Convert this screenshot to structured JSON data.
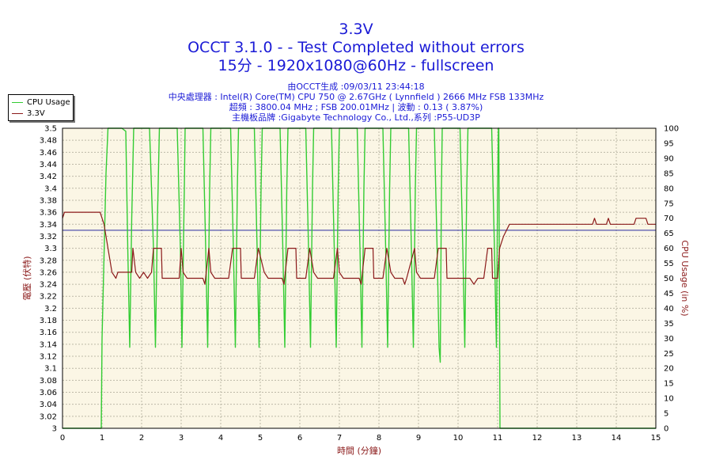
{
  "chart_data": {
    "type": "line",
    "title": "3.3V",
    "subtitle_lines": [
      "OCCT 3.1.0 -  - Test Completed without errors",
      "15分 - 1920x1080@60Hz - fullscreen"
    ],
    "info_lines": [
      "由OCCT生成 :09/03/11 23:44:18",
      "中央處理器 : Intel(R) Core(TM) CPU 750 @ 2.67GHz ( Lynnfield ) 2666 MHz FSB 133MHz",
      "超頻 : 3800.04 MHz ; FSB 200.01MHz | 波動 : 0.13 ( 3.87%)",
      "主機板品牌 :Gigabyte Technology Co., Ltd.,系列 :P55-UD3P"
    ],
    "xlabel": "時間 (分鐘)",
    "ylabel_left": "電壓 (伏特)",
    "ylabel_right": "CPU Usage (in %)",
    "xlim": [
      0,
      15
    ],
    "ylim_left": [
      3.0,
      3.5
    ],
    "ylim_right": [
      0,
      100
    ],
    "x_ticks": [
      "0",
      "1",
      "2",
      "3",
      "4",
      "5",
      "6",
      "7",
      "8",
      "9",
      "10",
      "11",
      "12",
      "13",
      "14",
      "15"
    ],
    "y_left_ticks": [
      "3",
      "3.02",
      "3.04",
      "3.06",
      "3.08",
      "3.1",
      "3.12",
      "3.14",
      "3.16",
      "3.18",
      "3.2",
      "3.22",
      "3.24",
      "3.26",
      "3.28",
      "3.3",
      "3.32",
      "3.34",
      "3.36",
      "3.38",
      "3.4",
      "3.42",
      "3.44",
      "3.46",
      "3.48",
      "3.5"
    ],
    "y_right_ticks": [
      "0",
      "5",
      "10",
      "15",
      "20",
      "25",
      "30",
      "35",
      "40",
      "45",
      "50",
      "55",
      "60",
      "65",
      "70",
      "75",
      "80",
      "85",
      "90",
      "95",
      "100"
    ],
    "grid": true,
    "legend_position": "top-left",
    "reference_line": 3.33,
    "series": [
      {
        "name": "CPU Usage",
        "axis": "right",
        "color": "#33cc33",
        "points": [
          [
            0,
            0
          ],
          [
            0.98,
            0
          ],
          [
            1.0,
            30
          ],
          [
            1.1,
            85
          ],
          [
            1.15,
            100
          ],
          [
            1.5,
            100
          ],
          [
            1.6,
            99
          ],
          [
            1.65,
            60
          ],
          [
            1.7,
            27
          ],
          [
            1.75,
            70
          ],
          [
            1.8,
            100
          ],
          [
            2.2,
            100
          ],
          [
            2.3,
            60
          ],
          [
            2.35,
            27
          ],
          [
            2.4,
            70
          ],
          [
            2.45,
            100
          ],
          [
            2.9,
            100
          ],
          [
            2.98,
            60
          ],
          [
            3.02,
            27
          ],
          [
            3.08,
            80
          ],
          [
            3.1,
            100
          ],
          [
            3.55,
            100
          ],
          [
            3.62,
            60
          ],
          [
            3.67,
            27
          ],
          [
            3.72,
            80
          ],
          [
            3.75,
            100
          ],
          [
            4.25,
            100
          ],
          [
            4.32,
            60
          ],
          [
            4.37,
            27
          ],
          [
            4.42,
            80
          ],
          [
            4.45,
            100
          ],
          [
            4.85,
            100
          ],
          [
            4.92,
            60
          ],
          [
            4.97,
            27
          ],
          [
            5.02,
            80
          ],
          [
            5.05,
            100
          ],
          [
            5.5,
            100
          ],
          [
            5.57,
            60
          ],
          [
            5.62,
            27
          ],
          [
            5.67,
            80
          ],
          [
            5.7,
            100
          ],
          [
            6.15,
            100
          ],
          [
            6.22,
            60
          ],
          [
            6.27,
            27
          ],
          [
            6.32,
            80
          ],
          [
            6.35,
            100
          ],
          [
            6.8,
            100
          ],
          [
            6.87,
            60
          ],
          [
            6.92,
            27
          ],
          [
            6.97,
            80
          ],
          [
            7.0,
            100
          ],
          [
            7.45,
            100
          ],
          [
            7.52,
            60
          ],
          [
            7.57,
            27
          ],
          [
            7.62,
            80
          ],
          [
            7.65,
            100
          ],
          [
            8.1,
            100
          ],
          [
            8.17,
            60
          ],
          [
            8.22,
            27
          ],
          [
            8.27,
            80
          ],
          [
            8.3,
            100
          ],
          [
            8.75,
            100
          ],
          [
            8.82,
            60
          ],
          [
            8.87,
            27
          ],
          [
            8.92,
            80
          ],
          [
            8.95,
            100
          ],
          [
            9.4,
            100
          ],
          [
            9.47,
            60
          ],
          [
            9.52,
            27
          ],
          [
            9.55,
            22
          ],
          [
            9.58,
            80
          ],
          [
            9.6,
            100
          ],
          [
            10.05,
            100
          ],
          [
            10.12,
            60
          ],
          [
            10.17,
            27
          ],
          [
            10.22,
            80
          ],
          [
            10.25,
            100
          ],
          [
            10.85,
            100
          ],
          [
            10.92,
            60
          ],
          [
            10.97,
            27
          ],
          [
            11.0,
            80
          ],
          [
            11.02,
            100
          ],
          [
            11.03,
            100
          ],
          [
            11.06,
            0
          ],
          [
            15,
            0
          ]
        ]
      },
      {
        "name": "3.3V",
        "axis": "left",
        "color": "#8b1a1a",
        "points": [
          [
            0,
            3.35
          ],
          [
            0.05,
            3.36
          ],
          [
            0.95,
            3.36
          ],
          [
            1.05,
            3.34
          ],
          [
            1.15,
            3.3
          ],
          [
            1.25,
            3.26
          ],
          [
            1.35,
            3.25
          ],
          [
            1.4,
            3.26
          ],
          [
            1.75,
            3.26
          ],
          [
            1.78,
            3.3
          ],
          [
            1.85,
            3.26
          ],
          [
            1.95,
            3.25
          ],
          [
            2.05,
            3.26
          ],
          [
            2.15,
            3.25
          ],
          [
            2.25,
            3.26
          ],
          [
            2.3,
            3.3
          ],
          [
            2.5,
            3.3
          ],
          [
            2.52,
            3.25
          ],
          [
            2.95,
            3.25
          ],
          [
            3.0,
            3.3
          ],
          [
            3.05,
            3.26
          ],
          [
            3.15,
            3.25
          ],
          [
            3.55,
            3.25
          ],
          [
            3.6,
            3.24
          ],
          [
            3.7,
            3.3
          ],
          [
            3.75,
            3.26
          ],
          [
            3.85,
            3.25
          ],
          [
            4.2,
            3.25
          ],
          [
            4.3,
            3.3
          ],
          [
            4.5,
            3.3
          ],
          [
            4.52,
            3.25
          ],
          [
            4.85,
            3.25
          ],
          [
            4.95,
            3.3
          ],
          [
            5.1,
            3.26
          ],
          [
            5.2,
            3.25
          ],
          [
            5.55,
            3.25
          ],
          [
            5.6,
            3.24
          ],
          [
            5.7,
            3.3
          ],
          [
            5.9,
            3.3
          ],
          [
            5.92,
            3.25
          ],
          [
            6.15,
            3.25
          ],
          [
            6.25,
            3.3
          ],
          [
            6.35,
            3.26
          ],
          [
            6.45,
            3.25
          ],
          [
            6.85,
            3.25
          ],
          [
            6.95,
            3.3
          ],
          [
            7.0,
            3.26
          ],
          [
            7.1,
            3.25
          ],
          [
            7.5,
            3.25
          ],
          [
            7.55,
            3.24
          ],
          [
            7.65,
            3.3
          ],
          [
            7.85,
            3.3
          ],
          [
            7.87,
            3.25
          ],
          [
            8.1,
            3.25
          ],
          [
            8.2,
            3.3
          ],
          [
            8.3,
            3.26
          ],
          [
            8.4,
            3.25
          ],
          [
            8.6,
            3.25
          ],
          [
            8.65,
            3.24
          ],
          [
            8.7,
            3.25
          ],
          [
            8.9,
            3.3
          ],
          [
            8.95,
            3.26
          ],
          [
            9.05,
            3.25
          ],
          [
            9.4,
            3.25
          ],
          [
            9.5,
            3.3
          ],
          [
            9.7,
            3.3
          ],
          [
            9.72,
            3.25
          ],
          [
            10.3,
            3.25
          ],
          [
            10.4,
            3.24
          ],
          [
            10.5,
            3.25
          ],
          [
            10.65,
            3.25
          ],
          [
            10.75,
            3.3
          ],
          [
            10.85,
            3.3
          ],
          [
            10.87,
            3.25
          ],
          [
            11.0,
            3.25
          ],
          [
            11.05,
            3.3
          ],
          [
            11.15,
            3.32
          ],
          [
            11.3,
            3.34
          ],
          [
            13.4,
            3.34
          ],
          [
            13.45,
            3.35
          ],
          [
            13.5,
            3.34
          ],
          [
            13.75,
            3.34
          ],
          [
            13.8,
            3.35
          ],
          [
            13.85,
            3.34
          ],
          [
            14.45,
            3.34
          ],
          [
            14.5,
            3.35
          ],
          [
            14.75,
            3.35
          ],
          [
            14.8,
            3.34
          ],
          [
            15,
            3.34
          ]
        ]
      }
    ]
  }
}
